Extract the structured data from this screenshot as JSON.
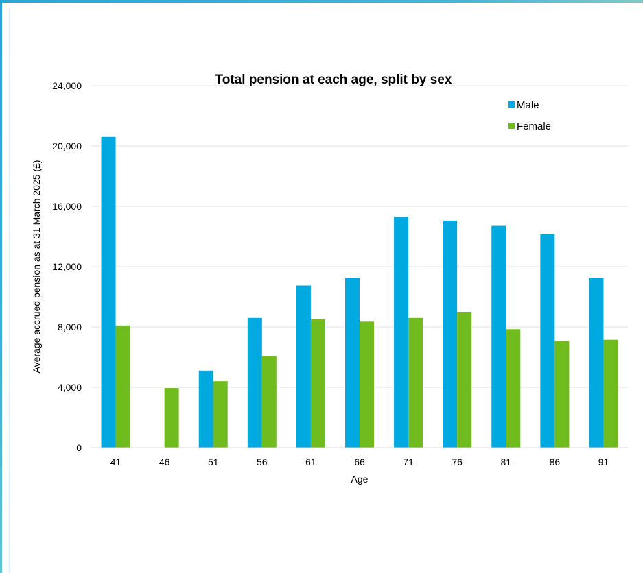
{
  "chart_data": {
    "type": "bar",
    "title": "Total pension at each age, split by sex",
    "xlabel": "Age",
    "ylabel": "Average accrued pension as at 31 March 2025 (£)",
    "categories": [
      "41",
      "46",
      "51",
      "56",
      "61",
      "66",
      "71",
      "76",
      "81",
      "86",
      "91"
    ],
    "series": [
      {
        "name": "Male",
        "color": "#00a9e0",
        "values": [
          20600,
          0,
          5100,
          8600,
          10750,
          11250,
          15300,
          15050,
          14700,
          14150,
          11250
        ]
      },
      {
        "name": "Female",
        "color": "#70bc1f",
        "values": [
          8100,
          3950,
          4400,
          6050,
          8500,
          8350,
          8600,
          9000,
          7850,
          7050,
          7150
        ]
      }
    ],
    "ylim": [
      0,
      24000
    ],
    "yticks": [
      0,
      4000,
      8000,
      12000,
      16000,
      20000,
      24000
    ],
    "ytick_labels": [
      "0",
      "4,000",
      "8,000",
      "12,000",
      "16,000",
      "20,000",
      "24,000"
    ],
    "grid": true,
    "legend_position": "top-right"
  }
}
